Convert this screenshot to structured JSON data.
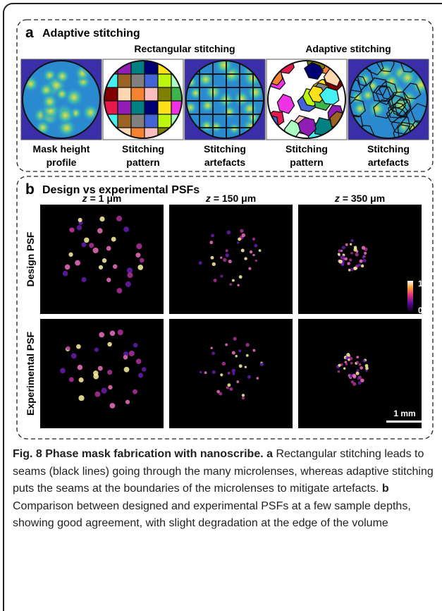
{
  "panel_a": {
    "label": "a",
    "title": "Adaptive stitching",
    "groups": [
      "Rectangular stitching",
      "Adaptive stitching"
    ],
    "captions": [
      [
        "Mask height",
        "profile"
      ],
      [
        "Stitching",
        "pattern"
      ],
      [
        "Stitching",
        "artefacts"
      ],
      [
        "Stitching",
        "pattern"
      ],
      [
        "Stitching",
        "artefacts"
      ]
    ]
  },
  "panel_b": {
    "label": "b",
    "title": "Design vs experimental PSFs",
    "columns": [
      {
        "var": "z",
        "rest": "= 1 μm"
      },
      {
        "var": "z",
        "rest": "= 150 μm"
      },
      {
        "var": "z",
        "rest": "= 350 μm"
      }
    ],
    "rows": [
      "Design PSF",
      "Experimental PSF"
    ],
    "colorbar": {
      "max": "1",
      "min": "0"
    },
    "scalebar": "1 mm"
  },
  "caption": {
    "title": "Fig. 8 Phase mask fabrication with nanoscribe.",
    "parts": [
      {
        "label": "a",
        "text": "Rectangular stitching leads to seams (black lines) going through the many microlenses, whereas adaptive stitching puts the seams at the boundaries of the microlenses to mitigate artefacts."
      },
      {
        "label": "b",
        "text": "Comparison between designed and experimental PSFs at a few sample depths, showing good agreement, with slight degradation at the edge of the volume"
      }
    ]
  }
}
